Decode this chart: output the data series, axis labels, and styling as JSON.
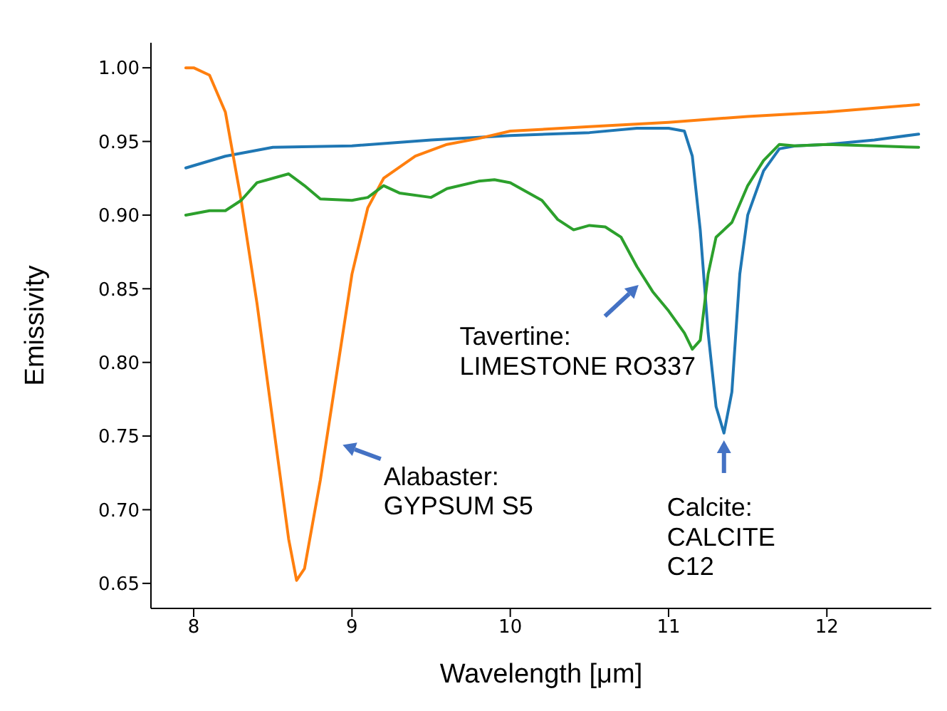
{
  "chart_data": {
    "type": "line",
    "xlabel": "Wavelength [μm]",
    "ylabel": "Emissivity",
    "xlim": [
      7.73,
      12.66
    ],
    "xticks": [
      8,
      9,
      10,
      11,
      12
    ],
    "ylim": [
      0.633,
      1.017
    ],
    "yticks": [
      {
        "value": 0.65,
        "label": "0.65"
      },
      {
        "value": 0.7,
        "label": "0.70"
      },
      {
        "value": 0.75,
        "label": "0.75"
      },
      {
        "value": 0.8,
        "label": "0.80"
      },
      {
        "value": 0.85,
        "label": "0.85"
      },
      {
        "value": 0.9,
        "label": "0.90"
      },
      {
        "value": 0.95,
        "label": "0.95"
      },
      {
        "value": 1.0,
        "label": "1.00"
      }
    ],
    "grid": false,
    "legend": false,
    "marker": "none",
    "line_style": "solid",
    "series": [
      {
        "color": "#1f77b4",
        "x": [
          7.95,
          8.2,
          8.5,
          9.0,
          9.5,
          10.0,
          10.5,
          10.8,
          11.0,
          11.1,
          11.15,
          11.2,
          11.25,
          11.3,
          11.35,
          11.4,
          11.45,
          11.5,
          11.6,
          11.7,
          11.8,
          12.0,
          12.3,
          12.58
        ],
        "values": [
          0.932,
          0.94,
          0.946,
          0.947,
          0.951,
          0.954,
          0.956,
          0.959,
          0.959,
          0.957,
          0.94,
          0.89,
          0.82,
          0.77,
          0.752,
          0.78,
          0.86,
          0.9,
          0.93,
          0.945,
          0.947,
          0.948,
          0.951,
          0.955
        ]
      },
      {
        "color": "#ff7f0e",
        "x": [
          7.95,
          8.0,
          8.1,
          8.2,
          8.3,
          8.4,
          8.5,
          8.6,
          8.65,
          8.7,
          8.8,
          8.9,
          9.0,
          9.1,
          9.2,
          9.4,
          9.6,
          9.8,
          10.0,
          10.5,
          11.0,
          11.5,
          12.0,
          12.58
        ],
        "values": [
          1.0,
          1.0,
          0.995,
          0.97,
          0.91,
          0.84,
          0.76,
          0.68,
          0.652,
          0.66,
          0.72,
          0.79,
          0.86,
          0.905,
          0.925,
          0.94,
          0.948,
          0.952,
          0.957,
          0.96,
          0.963,
          0.967,
          0.97,
          0.975
        ]
      },
      {
        "color": "#2ca02c",
        "x": [
          7.95,
          8.1,
          8.2,
          8.3,
          8.4,
          8.6,
          8.7,
          8.8,
          9.0,
          9.1,
          9.2,
          9.3,
          9.5,
          9.6,
          9.8,
          9.9,
          10.0,
          10.2,
          10.3,
          10.4,
          10.5,
          10.6,
          10.7,
          10.8,
          10.9,
          11.0,
          11.1,
          11.15,
          11.2,
          11.25,
          11.3,
          11.4,
          11.5,
          11.6,
          11.7,
          11.8,
          12.0,
          12.3,
          12.58
        ],
        "values": [
          0.9,
          0.903,
          0.903,
          0.91,
          0.922,
          0.928,
          0.92,
          0.911,
          0.91,
          0.912,
          0.92,
          0.915,
          0.912,
          0.918,
          0.923,
          0.924,
          0.922,
          0.91,
          0.897,
          0.89,
          0.893,
          0.892,
          0.885,
          0.865,
          0.848,
          0.835,
          0.82,
          0.809,
          0.815,
          0.86,
          0.885,
          0.895,
          0.92,
          0.937,
          0.948,
          0.947,
          0.948,
          0.947,
          0.946
        ]
      }
    ],
    "annotations": [
      {
        "text": "Alabaster:\nGYPSUM S5",
        "x": 8.84,
        "y": 0.748
      },
      {
        "text": "Tavertine:\nLIMESTONE RO337",
        "x": 10.85,
        "y": 0.8565
      },
      {
        "text": "Calcite:\nCALCITE\nC12",
        "x": 11.35,
        "y": 0.752
      }
    ]
  }
}
